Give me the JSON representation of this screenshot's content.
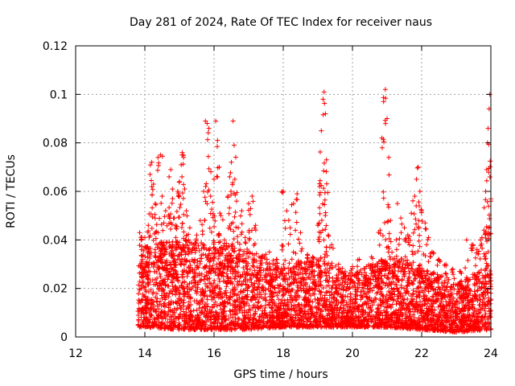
{
  "chart_data": {
    "type": "scatter",
    "title": "Day 281 of 2024, Rate Of TEC Index for receiver naus",
    "xlabel": "GPS time / hours",
    "ylabel": "ROTI / TECUs",
    "xlim": [
      12,
      24
    ],
    "ylim": [
      0,
      0.12
    ],
    "xticks": [
      "12",
      "14",
      "16",
      "18",
      "20",
      "22",
      "24"
    ],
    "yticks": [
      "0",
      "0.02",
      "0.04",
      "0.06",
      "0.08",
      "0.1",
      "0.12"
    ],
    "grid": true,
    "marker": "plus",
    "color": "#ff0000",
    "series": [
      {
        "name": "ROTI",
        "points": [
          [
            13.85,
            0.043
          ],
          [
            13.9,
            0.036
          ],
          [
            13.95,
            0.028
          ],
          [
            14.0,
            0.041
          ],
          [
            14.05,
            0.031
          ],
          [
            14.1,
            0.046
          ],
          [
            14.15,
            0.067
          ],
          [
            14.2,
            0.072
          ],
          [
            14.25,
            0.063
          ],
          [
            14.3,
            0.055
          ],
          [
            14.38,
            0.074
          ],
          [
            14.45,
            0.075
          ],
          [
            14.5,
            0.058
          ],
          [
            14.55,
            0.047
          ],
          [
            14.6,
            0.052
          ],
          [
            14.7,
            0.066
          ],
          [
            14.75,
            0.069
          ],
          [
            14.8,
            0.057
          ],
          [
            14.85,
            0.049
          ],
          [
            14.9,
            0.045
          ],
          [
            14.95,
            0.06
          ],
          [
            15.0,
            0.064
          ],
          [
            15.05,
            0.071
          ],
          [
            15.08,
            0.076
          ],
          [
            15.12,
            0.074
          ],
          [
            15.15,
            0.061
          ],
          [
            15.2,
            0.052
          ],
          [
            15.3,
            0.045
          ],
          [
            15.4,
            0.038
          ],
          [
            15.5,
            0.042
          ],
          [
            15.6,
            0.048
          ],
          [
            15.7,
            0.06
          ],
          [
            15.75,
            0.089
          ],
          [
            15.8,
            0.088
          ],
          [
            15.85,
            0.086
          ],
          [
            15.9,
            0.058
          ],
          [
            16.0,
            0.065
          ],
          [
            16.05,
            0.089
          ],
          [
            16.1,
            0.081
          ],
          [
            16.15,
            0.07
          ],
          [
            16.2,
            0.05
          ],
          [
            16.3,
            0.04
          ],
          [
            16.4,
            0.058
          ],
          [
            16.45,
            0.066
          ],
          [
            16.5,
            0.072
          ],
          [
            16.55,
            0.089
          ],
          [
            16.58,
            0.079
          ],
          [
            16.6,
            0.065
          ],
          [
            16.65,
            0.056
          ],
          [
            16.7,
            0.045
          ],
          [
            16.8,
            0.052
          ],
          [
            16.9,
            0.041
          ],
          [
            17.0,
            0.055
          ],
          [
            17.1,
            0.058
          ],
          [
            17.2,
            0.046
          ],
          [
            17.3,
            0.033
          ],
          [
            17.5,
            0.034
          ],
          [
            17.6,
            0.035
          ],
          [
            17.7,
            0.03
          ],
          [
            17.8,
            0.032
          ],
          [
            18.0,
            0.06
          ],
          [
            18.1,
            0.052
          ],
          [
            18.2,
            0.045
          ],
          [
            18.3,
            0.055
          ],
          [
            18.4,
            0.059
          ],
          [
            18.5,
            0.043
          ],
          [
            18.6,
            0.028
          ],
          [
            18.7,
            0.034
          ],
          [
            18.85,
            0.033
          ],
          [
            19.0,
            0.046
          ],
          [
            19.05,
            0.062
          ],
          [
            19.1,
            0.085
          ],
          [
            19.15,
            0.098
          ],
          [
            19.18,
            0.101
          ],
          [
            19.22,
            0.092
          ],
          [
            19.25,
            0.073
          ],
          [
            19.3,
            0.042
          ],
          [
            19.4,
            0.038
          ],
          [
            19.6,
            0.03
          ],
          [
            19.8,
            0.025
          ],
          [
            20.0,
            0.029
          ],
          [
            20.2,
            0.032
          ],
          [
            20.4,
            0.029
          ],
          [
            20.55,
            0.033
          ],
          [
            20.7,
            0.027
          ],
          [
            20.8,
            0.044
          ],
          [
            20.85,
            0.082
          ],
          [
            20.9,
            0.097
          ],
          [
            20.95,
            0.102
          ],
          [
            21.0,
            0.09
          ],
          [
            21.05,
            0.074
          ],
          [
            21.1,
            0.048
          ],
          [
            21.2,
            0.03
          ],
          [
            21.3,
            0.055
          ],
          [
            21.4,
            0.049
          ],
          [
            21.5,
            0.045
          ],
          [
            21.6,
            0.042
          ],
          [
            21.7,
            0.051
          ],
          [
            21.8,
            0.058
          ],
          [
            21.85,
            0.065
          ],
          [
            21.9,
            0.07
          ],
          [
            21.95,
            0.06
          ],
          [
            22.0,
            0.052
          ],
          [
            22.1,
            0.047
          ],
          [
            22.2,
            0.041
          ],
          [
            22.3,
            0.035
          ],
          [
            22.5,
            0.032
          ],
          [
            22.7,
            0.03
          ],
          [
            22.9,
            0.028
          ],
          [
            23.1,
            0.027
          ],
          [
            23.3,
            0.04
          ],
          [
            23.45,
            0.038
          ],
          [
            23.6,
            0.036
          ],
          [
            23.7,
            0.04
          ],
          [
            23.8,
            0.044
          ],
          [
            23.85,
            0.06
          ],
          [
            23.88,
            0.069
          ],
          [
            23.9,
            0.08
          ],
          [
            23.92,
            0.086
          ],
          [
            23.95,
            0.094
          ],
          [
            23.97,
            0.1
          ],
          [
            24.0,
            0.056
          ]
        ],
        "band": {
          "description": "dense ROTI cloud; per-hour lower and upper envelope",
          "hours": [
            13.8,
            14,
            15,
            16,
            17,
            18,
            19,
            20,
            21,
            22,
            23,
            24
          ],
          "low": [
            0.004,
            0.004,
            0.003,
            0.003,
            0.003,
            0.004,
            0.004,
            0.004,
            0.004,
            0.003,
            0.002,
            0.003
          ],
          "high": [
            0.03,
            0.038,
            0.04,
            0.04,
            0.036,
            0.03,
            0.034,
            0.026,
            0.034,
            0.03,
            0.022,
            0.03
          ]
        }
      }
    ]
  }
}
